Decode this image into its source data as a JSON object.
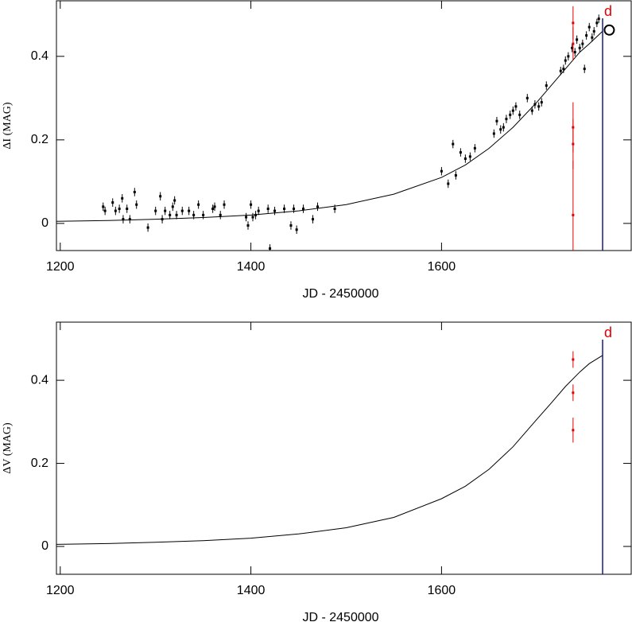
{
  "chart_data": [
    {
      "type": "scatter",
      "ylabel": "ΔI (MAG)",
      "xlabel": "JD - 2450000",
      "xlim": [
        1196,
        1799
      ],
      "ylim": [
        -0.065,
        0.533
      ],
      "xticks": [
        1200,
        1400,
        1600
      ],
      "yticks": [
        0,
        0.2,
        0.4
      ],
      "vline": {
        "x": 1769,
        "label": "d",
        "color": "#1a1a7a",
        "label_color": "#e00000"
      },
      "series": [
        {
          "kind": "line",
          "color": "#000000",
          "x": [
            1196,
            1250,
            1300,
            1350,
            1400,
            1450,
            1500,
            1550,
            1600,
            1625,
            1650,
            1675,
            1700,
            1715,
            1730,
            1745,
            1755,
            1769
          ],
          "values": [
            0.005,
            0.007,
            0.01,
            0.014,
            0.02,
            0.03,
            0.045,
            0.07,
            0.11,
            0.14,
            0.18,
            0.23,
            0.29,
            0.33,
            0.37,
            0.41,
            0.43,
            0.46
          ]
        },
        {
          "kind": "errorbar",
          "color": "#000000",
          "x": [
            1245,
            1247,
            1255,
            1258,
            1262,
            1265,
            1266,
            1270,
            1273,
            1278,
            1280,
            1292,
            1300,
            1305,
            1307,
            1310,
            1315,
            1318,
            1320,
            1322,
            1328,
            1335,
            1340,
            1345,
            1350,
            1360,
            1362,
            1368,
            1372,
            1395,
            1397,
            1400,
            1402,
            1405,
            1408,
            1418,
            1420,
            1425,
            1435,
            1442,
            1445,
            1448,
            1455,
            1465,
            1470,
            1488,
            1600,
            1607,
            1612,
            1615,
            1620,
            1625,
            1630,
            1635,
            1655,
            1658,
            1662,
            1665,
            1668,
            1672,
            1675,
            1678,
            1682,
            1690,
            1695,
            1698,
            1702,
            1705,
            1710,
            1725,
            1728,
            1730,
            1733,
            1737,
            1740,
            1742,
            1745,
            1748,
            1750,
            1752,
            1755,
            1758,
            1760,
            1763,
            1765
          ],
          "values": [
            0.04,
            0.03,
            0.05,
            0.03,
            0.035,
            0.06,
            0.01,
            0.035,
            0.01,
            0.075,
            0.045,
            -0.01,
            0.03,
            0.065,
            0.01,
            0.03,
            0.02,
            0.04,
            0.055,
            0.02,
            0.03,
            0.03,
            0.02,
            0.045,
            0.02,
            0.035,
            0.04,
            0.02,
            0.045,
            0.015,
            -0.005,
            0.045,
            0.015,
            0.02,
            0.03,
            0.035,
            -0.06,
            0.03,
            0.035,
            -0.005,
            0.035,
            -0.015,
            0.035,
            0.01,
            0.04,
            0.035,
            0.125,
            0.095,
            0.19,
            0.115,
            0.17,
            0.155,
            0.16,
            0.18,
            0.215,
            0.245,
            0.225,
            0.23,
            0.25,
            0.26,
            0.27,
            0.28,
            0.26,
            0.3,
            0.27,
            0.285,
            0.28,
            0.29,
            0.33,
            0.365,
            0.37,
            0.39,
            0.4,
            0.42,
            0.41,
            0.44,
            0.42,
            0.43,
            0.37,
            0.45,
            0.47,
            0.445,
            0.46,
            0.48,
            0.49
          ],
          "errors": [
            0.01,
            0.01,
            0.01,
            0.01,
            0.01,
            0.01,
            0.01,
            0.01,
            0.01,
            0.01,
            0.01,
            0.01,
            0.01,
            0.01,
            0.01,
            0.01,
            0.01,
            0.01,
            0.01,
            0.01,
            0.01,
            0.01,
            0.01,
            0.01,
            0.01,
            0.01,
            0.01,
            0.01,
            0.01,
            0.01,
            0.01,
            0.01,
            0.01,
            0.01,
            0.01,
            0.01,
            0.01,
            0.01,
            0.01,
            0.01,
            0.01,
            0.01,
            0.01,
            0.01,
            0.01,
            0.01,
            0.01,
            0.01,
            0.01,
            0.01,
            0.01,
            0.01,
            0.01,
            0.01,
            0.01,
            0.01,
            0.01,
            0.01,
            0.01,
            0.01,
            0.01,
            0.01,
            0.01,
            0.01,
            0.01,
            0.01,
            0.01,
            0.01,
            0.01,
            0.01,
            0.01,
            0.01,
            0.01,
            0.01,
            0.01,
            0.01,
            0.01,
            0.01,
            0.01,
            0.01,
            0.01,
            0.01,
            0.01,
            0.01,
            0.01
          ]
        },
        {
          "kind": "errorbar",
          "color": "#e00000",
          "x": [
            1738,
            1738,
            1738,
            1738,
            1738
          ],
          "values": [
            0.48,
            0.43,
            0.23,
            0.19,
            0.02
          ],
          "errors": [
            0.04,
            0.04,
            0.06,
            0.06,
            0.13
          ]
        },
        {
          "kind": "open-circle",
          "color": "#000000",
          "x": [
            1776
          ],
          "values": [
            0.463
          ]
        }
      ]
    },
    {
      "type": "scatter",
      "ylabel": "ΔV (MAG)",
      "xlabel": "JD - 2450000",
      "xlim": [
        1196,
        1799
      ],
      "ylim": [
        -0.067,
        0.54
      ],
      "xticks": [
        1200,
        1400,
        1600
      ],
      "yticks": [
        0,
        0.2,
        0.4
      ],
      "vline": {
        "x": 1769,
        "label": "d",
        "color": "#1a1a7a",
        "label_color": "#e00000"
      },
      "series": [
        {
          "kind": "line",
          "color": "#000000",
          "x": [
            1196,
            1250,
            1300,
            1350,
            1400,
            1450,
            1500,
            1550,
            1600,
            1625,
            1650,
            1675,
            1700,
            1715,
            1730,
            1745,
            1755,
            1769
          ],
          "values": [
            0.005,
            0.007,
            0.01,
            0.014,
            0.02,
            0.03,
            0.045,
            0.07,
            0.115,
            0.145,
            0.186,
            0.24,
            0.306,
            0.345,
            0.385,
            0.42,
            0.44,
            0.46
          ]
        },
        {
          "kind": "errorbar",
          "color": "#e00000",
          "x": [
            1738,
            1738,
            1738
          ],
          "values": [
            0.45,
            0.37,
            0.28
          ],
          "errors": [
            0.02,
            0.02,
            0.03
          ]
        }
      ]
    }
  ]
}
